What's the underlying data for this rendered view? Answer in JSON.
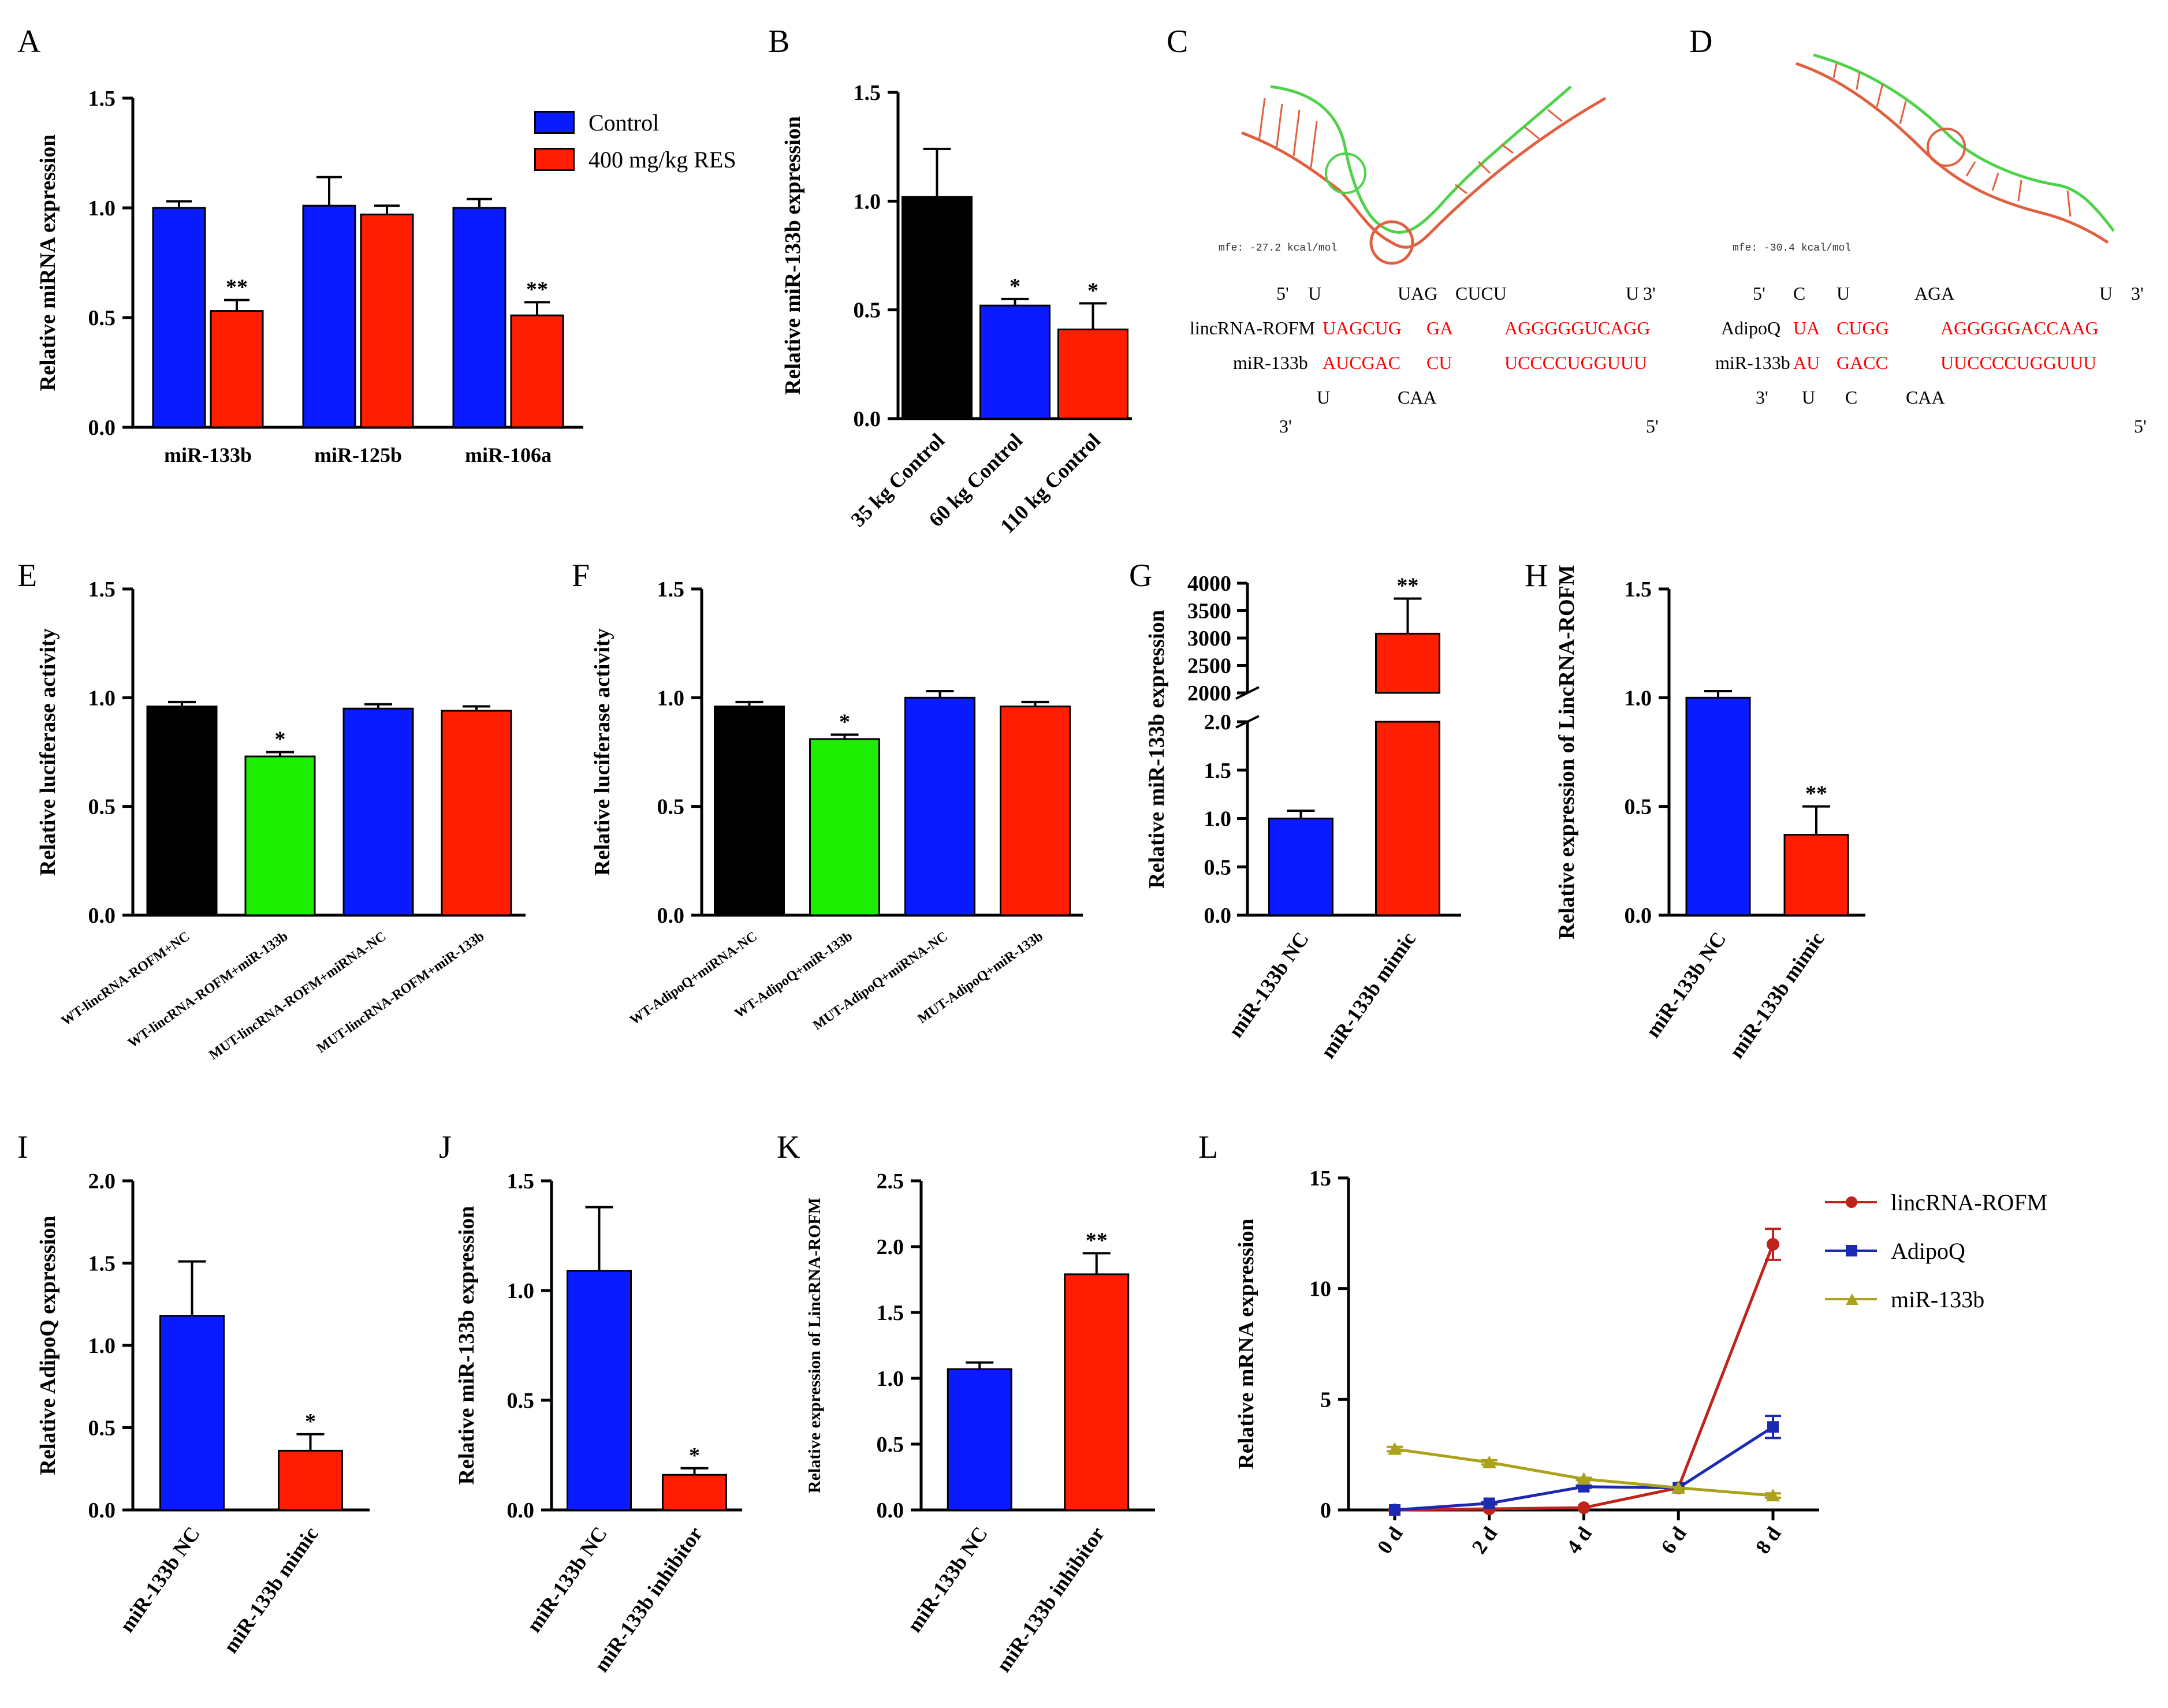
{
  "panels": {
    "A": "A",
    "B": "B",
    "C": "C",
    "D": "D",
    "E": "E",
    "F": "F",
    "G": "G",
    "H": "H",
    "I": "I",
    "J": "J",
    "K": "K",
    "L": "L"
  },
  "colors": {
    "blue": "#0a1bff",
    "red": "#ff1e00",
    "black": "#000000",
    "green": "#1bee00",
    "line_red": "#c0231c",
    "line_blue": "#1b2ab0",
    "line_olive": "#aaa21b",
    "stem_red": "#e0603f",
    "stem_green": "#4fd24a"
  },
  "legendA": {
    "control": "Control",
    "res": "400 mg/kg RES"
  },
  "legendL": {
    "lincrna": "lincRNA-ROFM",
    "adipoq": "AdipoQ",
    "mir": "miR-133b"
  },
  "seqC": {
    "mfe": "mfe: -27.2 kcal/mol",
    "top_5": "5'",
    "top_u": "U",
    "top_uag": "UAG",
    "top_cucu": "CUCU",
    "top_u2": "U",
    "top_3": "3'",
    "name1": "lincRNA-ROFM",
    "s1a": "UAGCUG",
    "s1b": "GA",
    "s1c": "AGGGGGUCAGG",
    "name2": "miR-133b",
    "s2a": "AUCGAC",
    "s2b": "CU",
    "s2c": "UCCCCUGGUUU",
    "bot_u": "U",
    "bot_caa": "CAA",
    "bot_3": "3'",
    "bot_5": "5'"
  },
  "seqD": {
    "mfe": "mfe: -30.4 kcal/mol",
    "top_5": "5'",
    "top_c": "C",
    "top_u": "U",
    "top_aga": "AGA",
    "top_u2": "U",
    "top_3": "3'",
    "name1": "AdipoQ",
    "s1a": "UA",
    "s1b": "CUGG",
    "s1c": "AGGGGGACCAAG",
    "name2": "miR-133b",
    "s2a": "AU",
    "s2b": "GACC",
    "s2c": "UUCCCCUGGUUU",
    "bot_u": "U",
    "bot_c": "C",
    "bot_caa": "CAA",
    "bot_3": "3'",
    "bot_5": "5'"
  },
  "chart_data": [
    {
      "id": "A",
      "type": "bar",
      "ylabel": "Relative miRNA expression",
      "ylim": [
        0,
        1.5
      ],
      "ticks": [
        "0.0",
        "0.5",
        "1.0",
        "1.5"
      ],
      "categories": [
        "miR-133b",
        "miR-125b",
        "miR-106a"
      ],
      "series": [
        {
          "name": "Control",
          "color": "blue",
          "values": [
            1.0,
            1.01,
            1.0
          ],
          "err": [
            0.03,
            0.13,
            0.04
          ],
          "sig": [
            "",
            "",
            ""
          ]
        },
        {
          "name": "400 mg/kg RES",
          "color": "red",
          "values": [
            0.53,
            0.97,
            0.51
          ],
          "err": [
            0.05,
            0.04,
            0.06
          ],
          "sig": [
            "**",
            "",
            "**"
          ]
        }
      ]
    },
    {
      "id": "B",
      "type": "bar",
      "ylabel": "Relative miR-133b expression",
      "ylim": [
        0,
        1.5
      ],
      "ticks": [
        "0.0",
        "0.5",
        "1.0",
        "1.5"
      ],
      "categories": [
        "35 kg Control",
        "60 kg Control",
        "110 kg Control"
      ],
      "values": [
        1.02,
        0.52,
        0.41
      ],
      "err": [
        0.22,
        0.03,
        0.12
      ],
      "colors": [
        "black",
        "blue",
        "red"
      ],
      "sig": [
        "",
        "*",
        "*"
      ]
    },
    {
      "id": "E",
      "type": "bar",
      "ylabel": "Relative luciferase activity",
      "ylim": [
        0,
        1.5
      ],
      "ticks": [
        "0.0",
        "0.5",
        "1.0",
        "1.5"
      ],
      "categories": [
        "WT-lincRNA-ROFM+NC",
        "WT-lincRNA-ROFM+miR-133b",
        "MUT-lincRNA-ROFM+miRNA-NC",
        "MUT-lincRNA-ROFM+miR-133b"
      ],
      "values": [
        0.96,
        0.73,
        0.95,
        0.94
      ],
      "err": [
        0.02,
        0.02,
        0.02,
        0.02
      ],
      "colors": [
        "black",
        "green",
        "blue",
        "red"
      ],
      "sig": [
        "",
        "*",
        "",
        ""
      ]
    },
    {
      "id": "F",
      "type": "bar",
      "ylabel": "Relative luciferase activity",
      "ylim": [
        0,
        1.5
      ],
      "ticks": [
        "0.0",
        "0.5",
        "1.0",
        "1.5"
      ],
      "categories": [
        "WT-AdipoQ+miRNA-NC",
        "WT-AdipoQ+miR-133b",
        "MUT-AdipoQ+miRNA-NC",
        "MUT-AdipoQ+miR-133b"
      ],
      "values": [
        0.96,
        0.81,
        1.0,
        0.96
      ],
      "err": [
        0.02,
        0.02,
        0.03,
        0.02
      ],
      "colors": [
        "black",
        "green",
        "blue",
        "red"
      ],
      "sig": [
        "",
        "*",
        "",
        ""
      ]
    },
    {
      "id": "G",
      "type": "bar",
      "ylabel": "Relative miR-133b expression",
      "broken_axis": true,
      "lower_ylim": [
        0,
        2.0
      ],
      "upper_ylim": [
        2000,
        4000
      ],
      "lower_ticks": [
        "0.0",
        "0.5",
        "1.0",
        "1.5",
        "2.0"
      ],
      "upper_ticks": [
        "2000",
        "2500",
        "3000",
        "3500",
        "4000"
      ],
      "categories": [
        "miR-133b NC",
        "miR-133b mimic"
      ],
      "values": [
        1.0,
        3080
      ],
      "err": [
        0.08,
        640
      ],
      "colors": [
        "blue",
        "red"
      ],
      "sig": [
        "",
        "**"
      ]
    },
    {
      "id": "H",
      "type": "bar",
      "ylabel": "Relative expression of LincRNA-ROFM",
      "ylim": [
        0,
        1.5
      ],
      "ticks": [
        "0.0",
        "0.5",
        "1.0",
        "1.5"
      ],
      "categories": [
        "miR-133b NC",
        "miR-133b mimic"
      ],
      "values": [
        1.0,
        0.37
      ],
      "err": [
        0.03,
        0.13
      ],
      "colors": [
        "blue",
        "red"
      ],
      "sig": [
        "",
        "**"
      ]
    },
    {
      "id": "I",
      "type": "bar",
      "ylabel": "Relative AdipoQ expression",
      "ylim": [
        0,
        2.0
      ],
      "ticks": [
        "0.0",
        "0.5",
        "1.0",
        "1.5",
        "2.0"
      ],
      "categories": [
        "miR-133b NC",
        "miR-133b mimic"
      ],
      "values": [
        1.18,
        0.36
      ],
      "err": [
        0.33,
        0.1
      ],
      "colors": [
        "blue",
        "red"
      ],
      "sig": [
        "",
        "*"
      ]
    },
    {
      "id": "J",
      "type": "bar",
      "ylabel": "Relative miR-133b expression",
      "ylim": [
        0,
        1.5
      ],
      "ticks": [
        "0.0",
        "0.5",
        "1.0",
        "1.5"
      ],
      "categories": [
        "miR-133b NC",
        "miR-133b inhibitor"
      ],
      "values": [
        1.09,
        0.16
      ],
      "err": [
        0.29,
        0.03
      ],
      "colors": [
        "blue",
        "red"
      ],
      "sig": [
        "",
        "*"
      ]
    },
    {
      "id": "K",
      "type": "bar",
      "ylabel": "Relative expression of LincRNA-ROFM",
      "ylim": [
        0,
        2.5
      ],
      "ticks": [
        "0.0",
        "0.5",
        "1.0",
        "1.5",
        "2.0",
        "2.5"
      ],
      "categories": [
        "miR-133b NC",
        "miR-133b inhibitor"
      ],
      "values": [
        1.07,
        1.79
      ],
      "err": [
        0.05,
        0.16
      ],
      "colors": [
        "blue",
        "red"
      ],
      "sig": [
        "",
        "**"
      ]
    },
    {
      "id": "L",
      "type": "line",
      "ylabel": "Relative mRNA expression",
      "ylim": [
        0,
        15
      ],
      "ticks": [
        "0",
        "5",
        "10",
        "15"
      ],
      "x": [
        "0 d",
        "2 d",
        "4 d",
        "6 d",
        "8 d"
      ],
      "series": [
        {
          "name": "lincRNA-ROFM",
          "color": "line_red",
          "marker": "circle",
          "values": [
            0.0,
            0.05,
            0.1,
            1.0,
            12.0
          ],
          "err": [
            0,
            0,
            0,
            0,
            0.7
          ]
        },
        {
          "name": "AdipoQ",
          "color": "line_blue",
          "marker": "square",
          "values": [
            0.0,
            0.3,
            1.05,
            1.0,
            3.75
          ],
          "err": [
            0,
            0.05,
            0.05,
            0,
            0.5
          ]
        },
        {
          "name": "miR-133b",
          "color": "line_olive",
          "marker": "triangle",
          "values": [
            2.75,
            2.15,
            1.4,
            1.0,
            0.65
          ],
          "err": [
            0.1,
            0.1,
            0.05,
            0,
            0.1
          ]
        }
      ]
    }
  ]
}
